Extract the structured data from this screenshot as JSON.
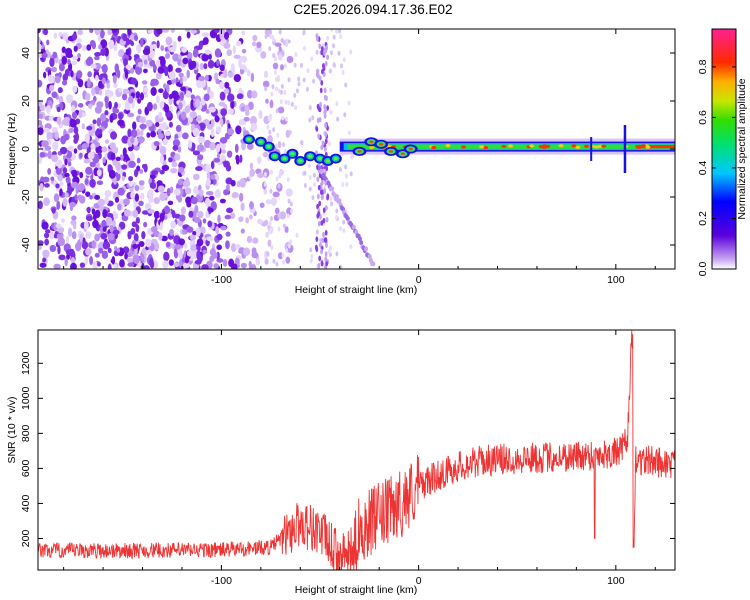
{
  "title": "C2E5.2026.094.17.36.E02",
  "chart_data": [
    {
      "type": "heatmap",
      "xlabel": "Height of straight line (km)",
      "ylabel": "Frequency (Hz)",
      "xlim": [
        -193,
        130
      ],
      "ylim": [
        -50,
        50
      ],
      "xticks": [
        -100,
        0,
        100
      ],
      "yticks": [
        -40,
        -20,
        0,
        20,
        40
      ],
      "colorbar": {
        "label": "Normalized spectral amplitude",
        "range": [
          0,
          0.95
        ],
        "ticks": [
          0.0,
          0.2,
          0.4,
          0.6,
          0.8
        ]
      },
      "features": [
        {
          "name": "noise",
          "x_range": [
            -193,
            -75
          ],
          "freq_range": [
            -50,
            50
          ],
          "amplitude": 0.05
        },
        {
          "name": "carrier",
          "x_range": [
            -87,
            130
          ],
          "freq": 1,
          "amplitude": 0.9
        },
        {
          "name": "descending trace",
          "x_range": [
            -50,
            -23
          ],
          "freq_range": [
            -8,
            -48
          ]
        }
      ]
    },
    {
      "type": "line",
      "xlabel": "Height of straight line (km)",
      "ylabel": "SNR (10 * v/v)",
      "xlim": [
        -193,
        130
      ],
      "ylim": [
        20,
        1390
      ],
      "xticks": [
        -100,
        0,
        100
      ],
      "yticks": [
        200,
        400,
        600,
        800,
        1000,
        1200
      ],
      "series": [
        {
          "color": "#ee3333",
          "x": [
            -193,
            -150,
            -100,
            -75,
            -60,
            -50,
            -40,
            -33,
            -30,
            -20,
            -10,
            0,
            10,
            20,
            30,
            40,
            60,
            80,
            90,
            100,
            103,
            106,
            108,
            109,
            110,
            120,
            130
          ],
          "y": [
            130,
            130,
            135,
            150,
            290,
            240,
            90,
            110,
            260,
            320,
            390,
            500,
            560,
            610,
            640,
            650,
            660,
            670,
            680,
            690,
            700,
            770,
            1380,
            120,
            650,
            640,
            620
          ]
        }
      ]
    }
  ]
}
